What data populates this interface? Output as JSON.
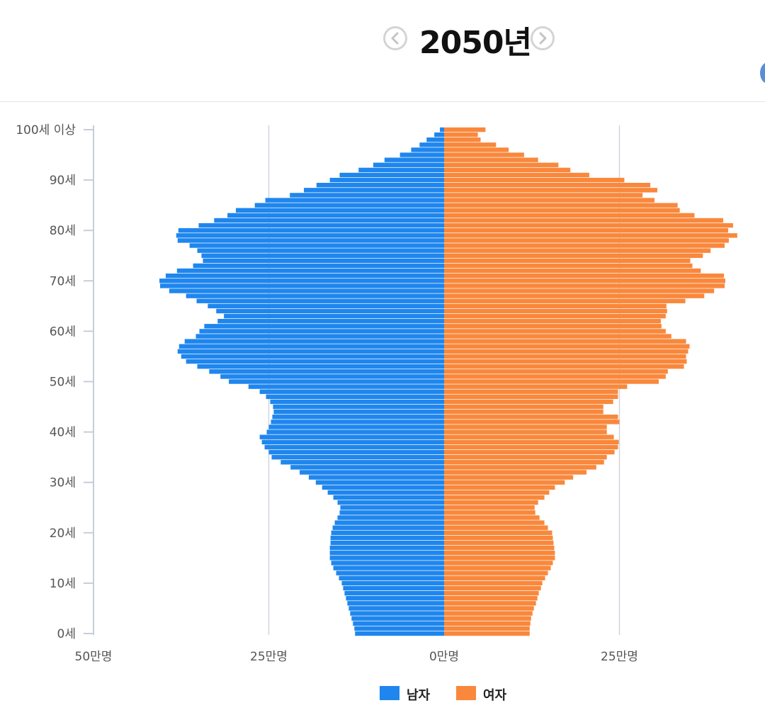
{
  "header": {
    "year_label": "2050년",
    "prev_icon": "chevron-left-icon",
    "next_icon": "chevron-right-icon"
  },
  "colors": {
    "male": "#1f86ee",
    "female": "#f9883c",
    "axis": "#c9d3dd",
    "text": "#555555"
  },
  "legend": [
    {
      "label": "남자",
      "color": "#1f86ee"
    },
    {
      "label": "여자",
      "color": "#f9883c"
    }
  ],
  "chart_data": {
    "type": "bar",
    "orientation": "horizontal",
    "unit": "만명",
    "categories": [
      "0세",
      "1세",
      "2세",
      "3세",
      "4세",
      "5세",
      "6세",
      "7세",
      "8세",
      "9세",
      "10세",
      "11세",
      "12세",
      "13세",
      "14세",
      "15세",
      "16세",
      "17세",
      "18세",
      "19세",
      "20세",
      "21세",
      "22세",
      "23세",
      "24세",
      "25세",
      "26세",
      "27세",
      "28세",
      "29세",
      "30세",
      "31세",
      "32세",
      "33세",
      "34세",
      "35세",
      "36세",
      "37세",
      "38세",
      "39세",
      "40세",
      "41세",
      "42세",
      "43세",
      "44세",
      "45세",
      "46세",
      "47세",
      "48세",
      "49세",
      "50세",
      "51세",
      "52세",
      "53세",
      "54세",
      "55세",
      "56세",
      "57세",
      "58세",
      "59세",
      "60세",
      "61세",
      "62세",
      "63세",
      "64세",
      "65세",
      "66세",
      "67세",
      "68세",
      "69세",
      "70세",
      "71세",
      "72세",
      "73세",
      "74세",
      "75세",
      "76세",
      "77세",
      "78세",
      "79세",
      "80세",
      "81세",
      "82세",
      "83세",
      "84세",
      "85세",
      "86세",
      "87세",
      "88세",
      "89세",
      "90세",
      "91세",
      "92세",
      "93세",
      "94세",
      "95세",
      "96세",
      "97세",
      "98세",
      "99세",
      "100세 이상"
    ],
    "y_tick_labels": [
      "0세",
      "10세",
      "20세",
      "30세",
      "40세",
      "50세",
      "60세",
      "70세",
      "80세",
      "90세",
      "100세 이상"
    ],
    "x_tick_labels": [
      "50만명",
      "25만명",
      "0만명",
      "25만명"
    ],
    "xlim": [
      -50,
      50
    ],
    "series": [
      {
        "name": "남자",
        "values": [
          12.7,
          12.8,
          13.0,
          13.2,
          13.4,
          13.6,
          13.8,
          14.0,
          14.2,
          14.4,
          14.6,
          15.0,
          15.4,
          15.8,
          16.1,
          16.3,
          16.3,
          16.3,
          16.2,
          16.2,
          16.1,
          15.9,
          15.6,
          15.2,
          14.9,
          14.8,
          15.2,
          15.8,
          16.6,
          17.4,
          18.3,
          19.3,
          20.6,
          21.9,
          23.3,
          24.6,
          25.0,
          25.6,
          26.0,
          26.3,
          25.3,
          25.0,
          24.7,
          24.5,
          24.3,
          24.4,
          24.8,
          25.4,
          26.3,
          27.9,
          30.7,
          31.9,
          33.5,
          35.2,
          36.8,
          37.5,
          38.0,
          37.8,
          37.0,
          35.4,
          34.9,
          34.2,
          32.3,
          31.4,
          32.5,
          33.7,
          35.3,
          36.8,
          39.2,
          40.5,
          40.6,
          39.7,
          38.1,
          35.8,
          34.4,
          34.6,
          35.2,
          36.3,
          38.0,
          38.2,
          37.9,
          35.0,
          32.8,
          30.9,
          29.7,
          27.0,
          25.5,
          22.0,
          20.0,
          18.2,
          16.3,
          14.9,
          12.2,
          10.1,
          8.5,
          6.3,
          4.7,
          3.5,
          2.5,
          1.4,
          0.6
        ]
      },
      {
        "name": "여자",
        "values": [
          12.2,
          12.2,
          12.3,
          12.4,
          12.6,
          12.8,
          13.1,
          13.3,
          13.5,
          13.8,
          14.0,
          14.4,
          14.8,
          15.2,
          15.5,
          15.8,
          15.8,
          15.7,
          15.6,
          15.5,
          15.4,
          14.8,
          14.3,
          13.6,
          13.0,
          12.9,
          13.4,
          14.3,
          15.0,
          15.8,
          17.2,
          18.4,
          20.3,
          21.7,
          22.8,
          23.2,
          24.3,
          24.8,
          24.9,
          24.2,
          23.2,
          23.2,
          25.0,
          24.8,
          22.7,
          22.7,
          24.1,
          24.8,
          24.8,
          26.1,
          30.6,
          31.6,
          31.9,
          34.2,
          34.6,
          34.5,
          34.8,
          35.0,
          34.5,
          32.4,
          31.6,
          31.0,
          30.9,
          31.6,
          31.8,
          31.7,
          34.4,
          37.1,
          38.5,
          40.0,
          40.1,
          39.9,
          36.6,
          35.4,
          35.1,
          36.9,
          38.0,
          40.0,
          40.6,
          41.8,
          40.5,
          41.2,
          39.8,
          35.7,
          33.6,
          33.3,
          30.0,
          28.3,
          30.4,
          29.4,
          25.7,
          20.7,
          18.0,
          16.3,
          13.4,
          11.4,
          9.2,
          7.4,
          5.2,
          4.8,
          5.9
        ]
      }
    ]
  }
}
